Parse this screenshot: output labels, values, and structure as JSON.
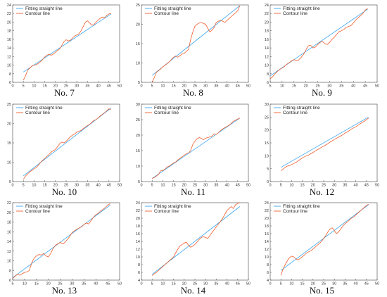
{
  "legend": {
    "fit_label": "Fitting straight line",
    "contour_label": "Contour line"
  },
  "colors": {
    "fit": "#3aa5ef",
    "contour": "#ef5d2c",
    "axis": "#444444"
  },
  "chart_data": [
    {
      "type": "line",
      "title": "No. 7",
      "xlim": [
        0,
        50
      ],
      "ylim": [
        6,
        24
      ],
      "xticks": [
        0,
        5,
        10,
        15,
        20,
        25,
        30,
        35,
        40,
        45,
        50
      ],
      "yticks": [
        6,
        8,
        10,
        12,
        14,
        16,
        18,
        20,
        22,
        24
      ],
      "series": [
        {
          "name": "Fitting straight line",
          "x": [
            5,
            46
          ],
          "y": [
            8.4,
            21.9
          ]
        },
        {
          "name": "Contour line",
          "x": [
            5,
            6,
            7,
            8,
            9,
            10,
            11,
            12,
            13,
            14,
            15,
            16,
            17,
            18,
            19,
            20,
            21,
            22,
            23,
            24,
            25,
            26,
            27,
            28,
            29,
            30,
            31,
            32,
            33,
            34,
            35,
            36,
            37,
            38,
            39,
            40,
            41,
            42,
            43,
            44,
            45,
            46
          ],
          "y": [
            6.5,
            7.5,
            8.8,
            9.3,
            9.8,
            10.0,
            10.1,
            10.4,
            10.8,
            11.3,
            11.9,
            12.3,
            12.5,
            12.3,
            12.6,
            13.0,
            13.4,
            13.8,
            14.6,
            15.5,
            15.9,
            15.6,
            15.8,
            16.3,
            16.8,
            17.0,
            17.3,
            18.0,
            19.0,
            20.0,
            20.3,
            19.8,
            19.3,
            19.4,
            20.0,
            20.5,
            20.9,
            21.2,
            21.0,
            21.6,
            21.9,
            22.0
          ]
        }
      ]
    },
    {
      "type": "line",
      "title": "No. 8",
      "xlim": [
        0,
        50
      ],
      "ylim": [
        5,
        25
      ],
      "xticks": [
        0,
        5,
        10,
        15,
        20,
        25,
        30,
        35,
        40,
        45,
        50
      ],
      "yticks": [
        5,
        10,
        15,
        20,
        25
      ],
      "series": [
        {
          "name": "Fitting straight line",
          "x": [
            5,
            46
          ],
          "y": [
            6.8,
            24.8
          ]
        },
        {
          "name": "Contour line",
          "x": [
            5,
            6,
            7,
            8,
            9,
            10,
            11,
            12,
            13,
            14,
            15,
            16,
            17,
            18,
            19,
            20,
            21,
            22,
            23,
            24,
            25,
            26,
            27,
            28,
            29,
            30,
            31,
            32,
            33,
            34,
            35,
            36,
            37,
            38,
            39,
            40,
            41,
            42,
            43,
            44,
            45,
            46
          ],
          "y": [
            5.0,
            6.2,
            7.6,
            8.0,
            8.5,
            9.0,
            9.4,
            9.8,
            10.3,
            10.9,
            11.5,
            11.8,
            11.5,
            11.9,
            12.3,
            12.5,
            13.0,
            13.5,
            16.0,
            18.0,
            19.5,
            20.0,
            20.3,
            20.5,
            20.2,
            20.0,
            19.0,
            18.0,
            18.5,
            19.2,
            20.5,
            20.8,
            21.0,
            20.8,
            20.5,
            21.0,
            21.5,
            22.0,
            22.5,
            23.0,
            23.5,
            24.8
          ]
        }
      ]
    },
    {
      "type": "line",
      "title": "No. 9",
      "xlim": [
        5,
        50
      ],
      "ylim": [
        6,
        24
      ],
      "xticks": [
        5,
        10,
        15,
        20,
        25,
        30,
        35,
        40,
        45,
        50
      ],
      "yticks": [
        6,
        8,
        10,
        12,
        14,
        16,
        18,
        20,
        22,
        24
      ],
      "series": [
        {
          "name": "Fitting straight line",
          "x": [
            5,
            46
          ],
          "y": [
            7.5,
            23.0
          ]
        },
        {
          "name": "Contour line",
          "x": [
            5,
            6,
            7,
            8,
            9,
            10,
            11,
            12,
            13,
            14,
            15,
            16,
            17,
            18,
            19,
            20,
            21,
            22,
            23,
            24,
            25,
            26,
            27,
            28,
            29,
            30,
            31,
            32,
            33,
            34,
            35,
            36,
            37,
            38,
            39,
            40,
            41,
            42,
            43,
            44,
            45,
            46
          ],
          "y": [
            6.8,
            7.3,
            8.0,
            8.5,
            9.0,
            9.3,
            9.7,
            10.2,
            10.6,
            11.0,
            11.3,
            11.0,
            11.2,
            11.8,
            12.5,
            13.5,
            14.5,
            14.6,
            14.0,
            14.2,
            14.8,
            15.3,
            15.5,
            15.0,
            14.8,
            15.3,
            16.0,
            16.5,
            17.2,
            17.8,
            18.0,
            18.3,
            18.8,
            19.0,
            19.2,
            19.8,
            20.5,
            21.0,
            21.5,
            22.0,
            22.8,
            23.2
          ]
        }
      ]
    },
    {
      "type": "line",
      "title": "No. 10",
      "xlim": [
        0,
        50
      ],
      "ylim": [
        5,
        25
      ],
      "xticks": [
        0,
        5,
        10,
        15,
        20,
        25,
        30,
        35,
        40,
        45,
        50
      ],
      "yticks": [
        5,
        10,
        15,
        20,
        25
      ],
      "series": [
        {
          "name": "Fitting straight line",
          "x": [
            5,
            46
          ],
          "y": [
            6.5,
            24.0
          ]
        },
        {
          "name": "Contour line",
          "x": [
            5,
            6,
            7,
            8,
            9,
            10,
            11,
            12,
            13,
            14,
            15,
            16,
            17,
            18,
            19,
            20,
            21,
            22,
            23,
            24,
            25,
            26,
            27,
            28,
            29,
            30,
            31,
            32,
            33,
            34,
            35,
            36,
            37,
            38,
            39,
            40,
            41,
            42,
            43,
            44,
            45,
            46
          ],
          "y": [
            5.6,
            6.4,
            7.0,
            7.5,
            7.9,
            8.3,
            8.6,
            9.2,
            9.9,
            10.5,
            11.0,
            11.5,
            12.0,
            12.6,
            13.0,
            13.3,
            14.0,
            14.8,
            15.2,
            15.0,
            15.4,
            16.0,
            16.6,
            17.0,
            17.3,
            17.8,
            18.0,
            18.2,
            18.7,
            19.1,
            19.5,
            19.8,
            20.3,
            20.8,
            21.0,
            21.5,
            22.0,
            22.4,
            22.8,
            23.3,
            23.8,
            23.6
          ]
        }
      ]
    },
    {
      "type": "line",
      "title": "No. 11",
      "xlim": [
        0,
        50
      ],
      "ylim": [
        5,
        30
      ],
      "xticks": [
        0,
        5,
        10,
        15,
        20,
        25,
        30,
        35,
        40,
        45,
        50
      ],
      "yticks": [
        5,
        10,
        15,
        20,
        25,
        30
      ],
      "series": [
        {
          "name": "Fitting straight line",
          "x": [
            5,
            46
          ],
          "y": [
            6.0,
            25.5
          ]
        },
        {
          "name": "Contour line",
          "x": [
            5,
            6,
            7,
            8,
            9,
            10,
            11,
            12,
            13,
            14,
            15,
            16,
            17,
            18,
            19,
            20,
            21,
            22,
            23,
            24,
            25,
            26,
            27,
            28,
            29,
            30,
            31,
            32,
            33,
            34,
            35,
            36,
            37,
            38,
            39,
            40,
            41,
            42,
            43,
            44,
            45,
            46
          ],
          "y": [
            6.0,
            6.3,
            6.8,
            7.3,
            8.5,
            8.6,
            9.0,
            9.7,
            10.0,
            10.5,
            11.0,
            11.3,
            12.0,
            12.5,
            13.0,
            13.5,
            14.0,
            14.2,
            15.0,
            17.0,
            18.0,
            18.8,
            19.2,
            19.0,
            18.5,
            19.0,
            19.2,
            19.4,
            19.7,
            20.4,
            20.2,
            20.8,
            21.5,
            22.0,
            22.5,
            22.8,
            23.2,
            23.8,
            24.5,
            24.8,
            25.2,
            25.5
          ]
        }
      ]
    },
    {
      "type": "line",
      "title": "No. 12",
      "xlim": [
        0,
        50
      ],
      "ylim": [
        0,
        30
      ],
      "xticks": [
        0,
        5,
        10,
        15,
        20,
        25,
        30,
        35,
        40,
        45,
        50
      ],
      "yticks": [
        0,
        5,
        10,
        15,
        20,
        25,
        30
      ],
      "series": [
        {
          "name": "Fitting straight line",
          "x": [
            5,
            46
          ],
          "y": [
            5.5,
            25.0
          ]
        },
        {
          "name": "Contour line",
          "x": [
            5,
            6,
            7,
            8,
            9,
            10,
            11,
            12,
            13,
            14,
            15,
            16,
            17,
            18,
            19,
            20,
            21,
            22,
            23,
            24,
            25,
            26,
            27,
            28,
            29,
            30,
            31,
            32,
            33,
            34,
            35,
            36,
            37,
            38,
            39,
            40,
            41,
            42,
            43,
            44,
            45,
            46
          ],
          "y": [
            4.2,
            4.8,
            5.5,
            6.0,
            6.2,
            6.6,
            7.0,
            7.4,
            8.0,
            8.6,
            9.2,
            9.6,
            10.0,
            10.3,
            10.8,
            11.3,
            11.8,
            12.3,
            12.8,
            13.3,
            13.7,
            14.2,
            14.7,
            15.3,
            15.8,
            16.3,
            16.8,
            17.2,
            17.7,
            18.2,
            18.8,
            19.2,
            19.8,
            20.4,
            20.8,
            21.2,
            21.8,
            22.4,
            22.9,
            23.4,
            24.0,
            24.6
          ]
        }
      ]
    },
    {
      "type": "line",
      "title": "No. 13",
      "xlim": [
        5,
        50
      ],
      "ylim": [
        6,
        22
      ],
      "xticks": [
        5,
        10,
        15,
        20,
        25,
        30,
        35,
        40,
        45,
        50
      ],
      "yticks": [
        6,
        8,
        10,
        12,
        14,
        16,
        18,
        20,
        22
      ],
      "series": [
        {
          "name": "Fitting straight line",
          "x": [
            5,
            46
          ],
          "y": [
            6.5,
            21.5
          ]
        },
        {
          "name": "Contour line",
          "x": [
            5,
            6,
            7,
            8,
            9,
            10,
            11,
            12,
            13,
            14,
            15,
            16,
            17,
            18,
            19,
            20,
            21,
            22,
            23,
            24,
            25,
            26,
            27,
            28,
            29,
            30,
            31,
            32,
            33,
            34,
            35,
            36,
            37,
            38,
            39,
            40,
            41,
            42,
            43,
            44,
            45,
            46
          ],
          "y": [
            6.3,
            6.8,
            7.2,
            7.0,
            7.3,
            7.6,
            7.7,
            8.0,
            9.5,
            10.5,
            11.0,
            11.3,
            11.2,
            11.5,
            11.0,
            10.8,
            11.5,
            12.5,
            13.2,
            13.5,
            13.8,
            13.5,
            13.8,
            14.4,
            15.0,
            15.8,
            16.2,
            16.5,
            16.8,
            17.0,
            17.5,
            17.8,
            17.6,
            18.3,
            19.0,
            19.5,
            19.8,
            20.3,
            20.6,
            21.0,
            21.5,
            21.8
          ]
        }
      ]
    },
    {
      "type": "line",
      "title": "No. 14",
      "xlim": [
        0,
        50
      ],
      "ylim": [
        4,
        24
      ],
      "xticks": [
        0,
        5,
        10,
        15,
        20,
        25,
        30,
        35,
        40,
        45,
        50
      ],
      "yticks": [
        4,
        6,
        8,
        10,
        12,
        14,
        16,
        18,
        20,
        22,
        24
      ],
      "series": [
        {
          "name": "Fitting straight line",
          "x": [
            5,
            46
          ],
          "y": [
            5.5,
            23.0
          ]
        },
        {
          "name": "Contour line",
          "x": [
            5,
            6,
            7,
            8,
            9,
            10,
            11,
            12,
            13,
            14,
            15,
            16,
            17,
            18,
            19,
            20,
            21,
            22,
            23,
            24,
            25,
            26,
            27,
            28,
            29,
            30,
            31,
            32,
            33,
            34,
            35,
            36,
            37,
            38,
            39,
            40,
            41,
            42,
            43,
            44,
            45,
            46
          ],
          "y": [
            5.2,
            5.6,
            6.0,
            6.5,
            7.0,
            7.5,
            8.0,
            8.5,
            9.0,
            9.5,
            10.0,
            11.0,
            12.0,
            12.8,
            13.2,
            13.6,
            13.8,
            13.0,
            12.5,
            12.8,
            13.2,
            13.8,
            14.5,
            15.0,
            15.2,
            15.0,
            14.8,
            15.5,
            16.3,
            17.0,
            17.8,
            18.5,
            19.2,
            20.0,
            21.0,
            22.0,
            22.5,
            23.0,
            22.5,
            23.5,
            23.8,
            24.0
          ]
        }
      ]
    },
    {
      "type": "line",
      "title": "No. 15",
      "xlim": [
        0,
        50
      ],
      "ylim": [
        4,
        24
      ],
      "xticks": [
        0,
        5,
        10,
        15,
        20,
        25,
        30,
        35,
        40,
        45,
        50
      ],
      "yticks": [
        4,
        6,
        8,
        10,
        12,
        14,
        16,
        18,
        20,
        22,
        24
      ],
      "series": [
        {
          "name": "Fitting straight line",
          "x": [
            5,
            46
          ],
          "y": [
            6.5,
            23.5
          ]
        },
        {
          "name": "Contour line",
          "x": [
            5,
            6,
            7,
            8,
            9,
            10,
            11,
            12,
            13,
            14,
            15,
            16,
            17,
            18,
            19,
            20,
            21,
            22,
            23,
            24,
            25,
            26,
            27,
            28,
            29,
            30,
            31,
            32,
            33,
            34,
            35,
            36,
            37,
            38,
            39,
            40,
            41,
            42,
            43,
            44,
            45,
            46
          ],
          "y": [
            5.2,
            6.8,
            8.0,
            9.0,
            9.8,
            10.2,
            10.0,
            9.5,
            9.2,
            9.6,
            10.0,
            10.5,
            11.0,
            11.3,
            11.6,
            12.0,
            12.5,
            13.0,
            13.5,
            14.0,
            14.8,
            15.5,
            16.5,
            17.2,
            17.5,
            16.8,
            16.0,
            16.5,
            17.2,
            18.0,
            18.6,
            19.0,
            19.5,
            20.0,
            20.3,
            20.8,
            21.3,
            21.8,
            22.3,
            22.8,
            23.3,
            23.6
          ]
        }
      ]
    }
  ]
}
